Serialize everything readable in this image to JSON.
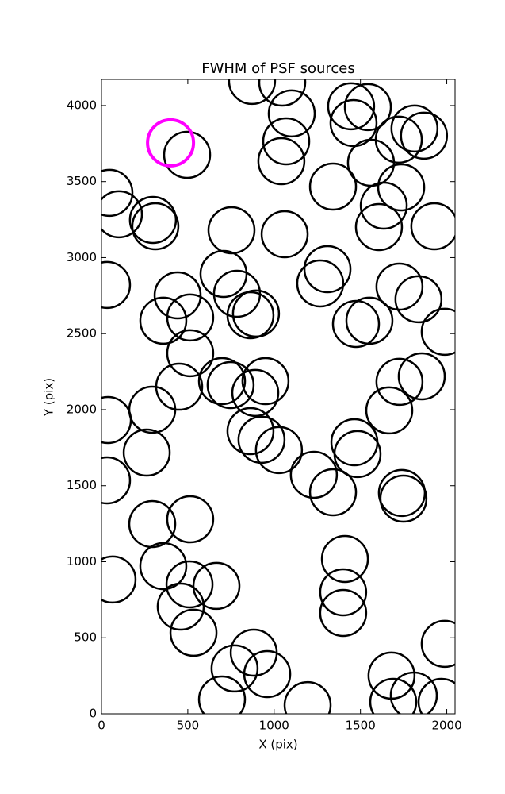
{
  "chart_data": {
    "type": "scatter",
    "title": "FWHM of PSF sources",
    "x_label": "X (pix)",
    "y_label": "Y (pix)",
    "xlim": [
      0,
      2048
    ],
    "ylim": [
      0,
      4172
    ],
    "xticks": [
      0,
      500,
      1000,
      1500,
      2000
    ],
    "yticks": [
      0,
      500,
      1000,
      1500,
      2000,
      2500,
      3000,
      3500,
      4000
    ],
    "series": [
      {
        "color": "#000000",
        "x": [
          496,
          872,
          1047,
          1102,
          1070,
          1042,
          1446,
          1543,
          1460,
          1813,
          1868,
          1722,
          1561,
          1736,
          1635,
          1607,
          1928,
          1341,
          46,
          101,
          298,
          312,
          753,
          1061,
          707,
          785,
          32,
          1309,
          1267,
          1726,
          1836,
          441,
          514,
          358,
          863,
          895,
          1474,
          1552,
          1988,
          514,
          450,
          698,
          748,
          950,
          891,
          294,
          37,
          1726,
          1855,
          1667,
          863,
          927,
          1028,
          262,
          1465,
          1483,
          1230,
          1341,
          32,
          1740,
          1749,
          294,
          514,
          1410,
          1400,
          1400,
          64,
          358,
          510,
          666,
          459,
          533,
          882,
          771,
          960,
          698,
          1194,
          1680,
          1809,
          1690,
          1970,
          1988
        ],
        "values": [
          3676,
          4162,
          4151,
          3948,
          3765,
          3634,
          3995,
          3990,
          3885,
          3849,
          3802,
          3776,
          3624,
          3462,
          3342,
          3201,
          3206,
          3467,
          3426,
          3285,
          3248,
          3206,
          3180,
          3154,
          2893,
          2762,
          2820,
          2924,
          2830,
          2809,
          2726,
          2752,
          2606,
          2585,
          2621,
          2632,
          2564,
          2585,
          2512,
          2371,
          2151,
          2188,
          2162,
          2188,
          2110,
          2000,
          1932,
          2183,
          2219,
          1995,
          1859,
          1802,
          1734,
          1718,
          1786,
          1708,
          1572,
          1457,
          1535,
          1452,
          1415,
          1248,
          1279,
          1018,
          799,
          663,
          883,
          971,
          851,
          841,
          705,
          533,
          402,
          298,
          261,
          94,
          57,
          251,
          120,
          78,
          78,
          460
        ]
      },
      {
        "color": "#ff00ff",
        "x": [
          400
        ],
        "values": [
          3755
        ]
      }
    ]
  }
}
